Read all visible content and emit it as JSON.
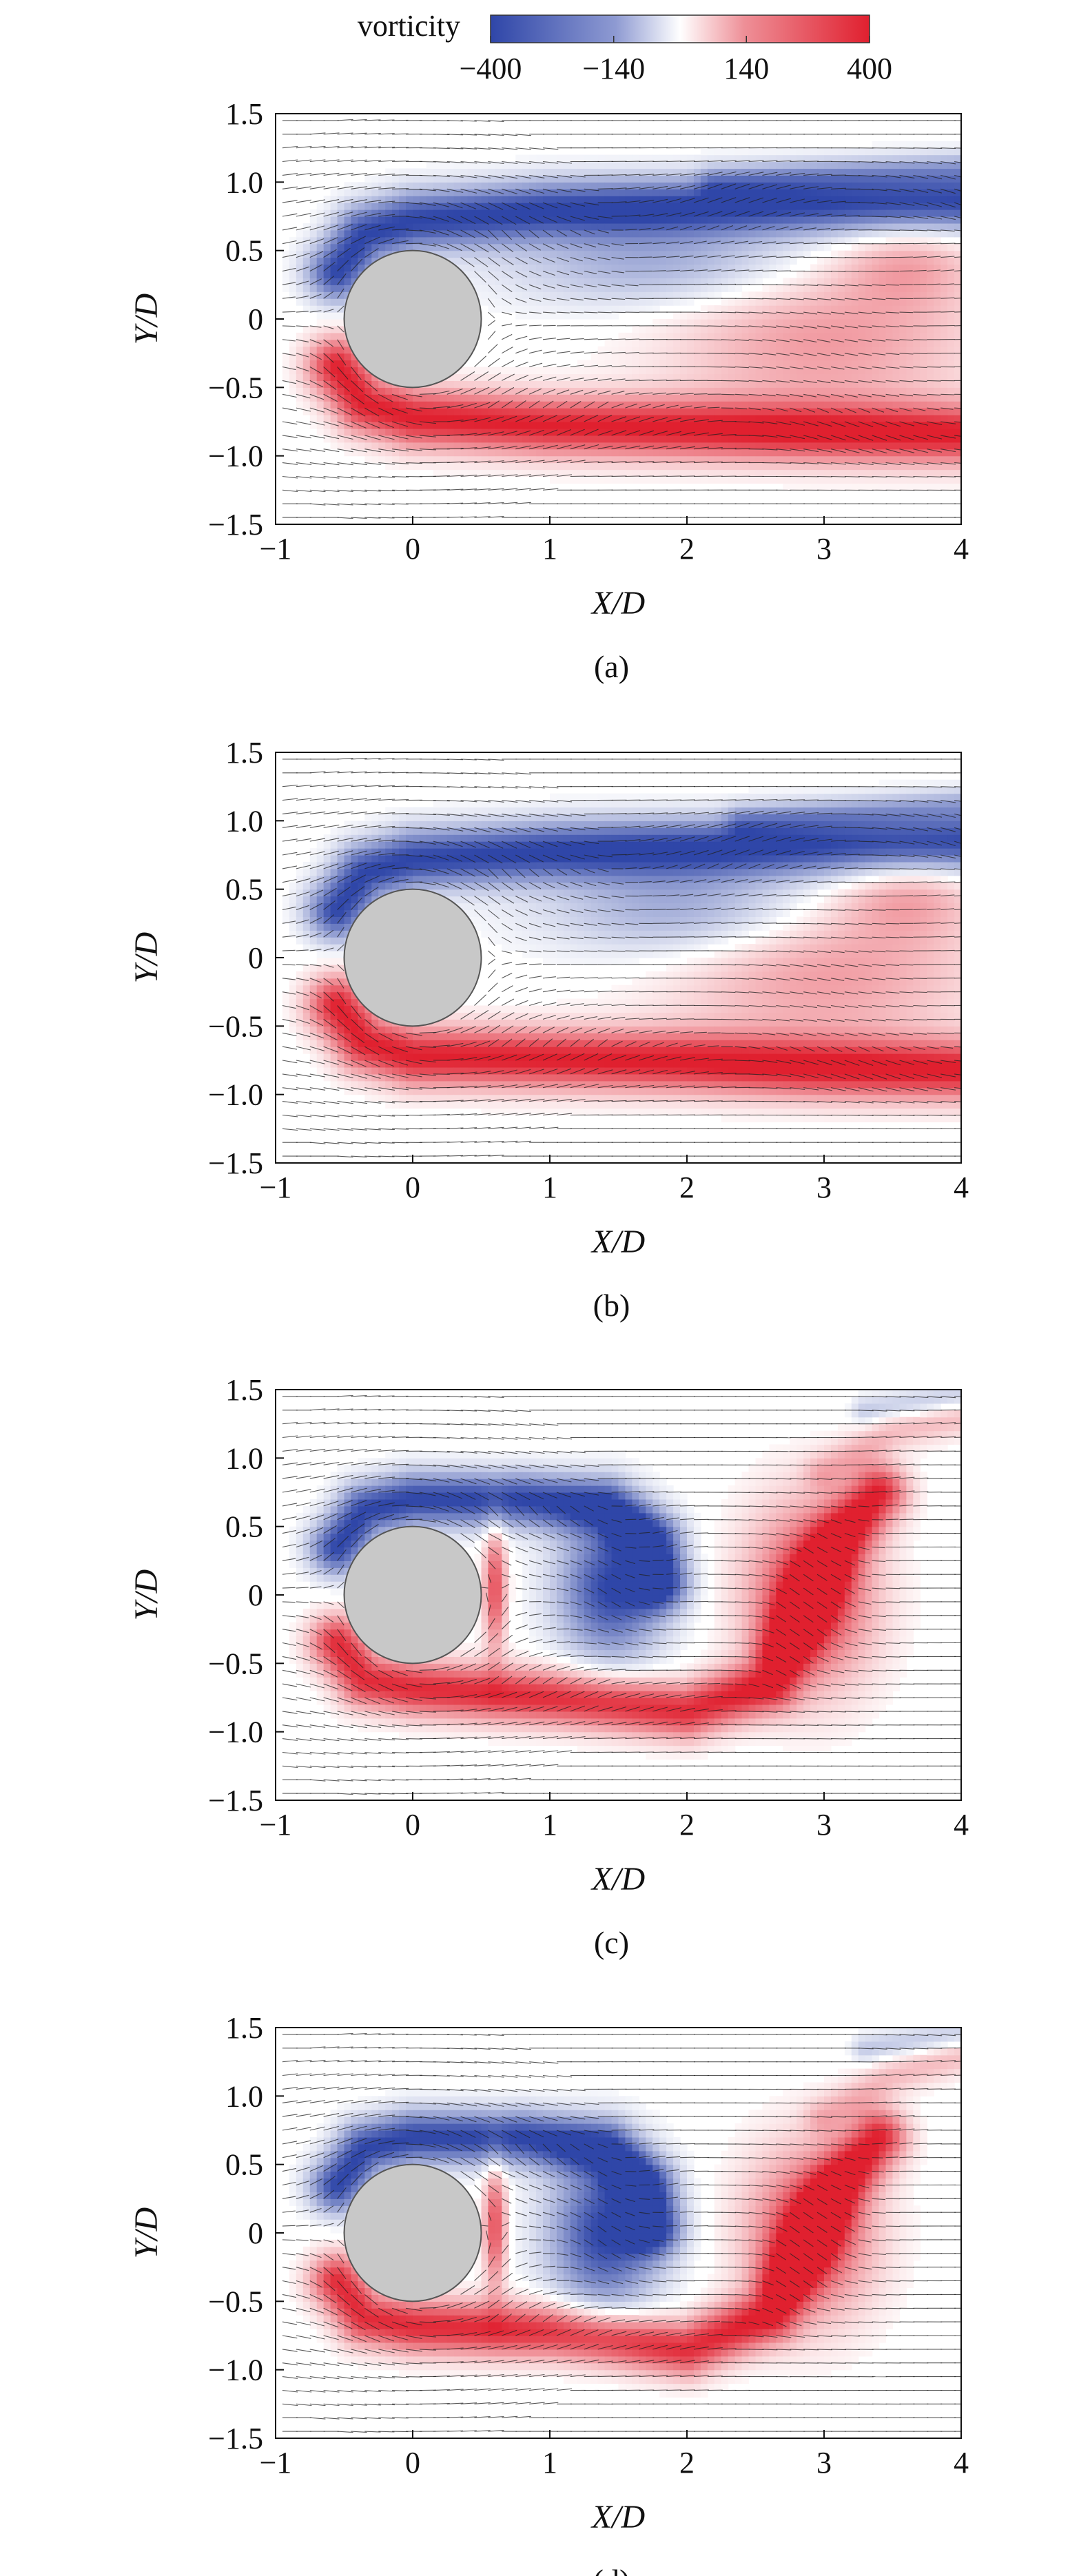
{
  "colorbar": {
    "label": "vorticity",
    "ticks": [
      -400,
      -140,
      140,
      400
    ],
    "tick_labels": [
      "−400",
      "−140",
      "140",
      "400"
    ],
    "range": [
      -400,
      400
    ],
    "colors": {
      "negative": "#2f46a8",
      "zero": "#ffffff",
      "positive": "#e0202f"
    }
  },
  "chart_data": [
    {
      "type": "heatmap",
      "panel_label": "(a)",
      "xlabel": "X/D",
      "ylabel": "Y/D",
      "xlim": [
        -1,
        4
      ],
      "ylim": [
        -1.5,
        1.5
      ],
      "xticks": [
        -1,
        0,
        1,
        2,
        3,
        4
      ],
      "xtick_labels": [
        "−1",
        "0",
        "1",
        "2",
        "3",
        "4"
      ],
      "yticks": [
        -1.5,
        -1.0,
        -0.5,
        0,
        0.5,
        1.0,
        1.5
      ],
      "ytick_labels": [
        "−1.5",
        "−1.0",
        "−0.5",
        "0",
        "0.5",
        "1.0",
        "1.5"
      ],
      "cylinder": {
        "center": [
          0,
          0
        ],
        "radius": 0.5,
        "color": "#c8c8c8"
      },
      "vector_field": "velocity arrows",
      "vortex_structures": [
        {
          "sign": "negative",
          "kind": "shear layer",
          "path": [
            [
              -0.55,
              0.35
            ],
            [
              -0.35,
              0.62
            ],
            [
              0.0,
              0.72
            ],
            [
              1.0,
              0.8
            ],
            [
              2.0,
              0.82
            ],
            [
              3.0,
              0.84
            ],
            [
              4.0,
              0.86
            ]
          ],
          "width": 0.22,
          "strength": 1.0
        },
        {
          "sign": "negative",
          "kind": "shear layer",
          "path": [
            [
              2.2,
              1.0
            ],
            [
              3.0,
              1.05
            ],
            [
              4.0,
              1.1
            ]
          ],
          "width": 0.12,
          "strength": 0.35
        },
        {
          "sign": "negative",
          "kind": "region",
          "center": [
            1.8,
            0.4
          ],
          "radius": [
            1.1,
            0.32
          ],
          "strength": 0.45
        },
        {
          "sign": "positive",
          "kind": "shear layer",
          "path": [
            [
              -0.55,
              -0.35
            ],
            [
              -0.35,
              -0.62
            ],
            [
              0.0,
              -0.72
            ],
            [
              1.0,
              -0.78
            ],
            [
              2.0,
              -0.8
            ],
            [
              3.0,
              -0.82
            ],
            [
              4.0,
              -0.84
            ]
          ],
          "width": 0.22,
          "strength": 1.0
        },
        {
          "sign": "positive",
          "kind": "region",
          "center": [
            3.0,
            -0.15
          ],
          "radius": [
            1.1,
            0.55
          ],
          "strength": 0.45
        },
        {
          "sign": "positive",
          "kind": "region",
          "center": [
            3.6,
            0.4
          ],
          "radius": [
            0.5,
            0.3
          ],
          "strength": 0.35
        }
      ]
    },
    {
      "type": "heatmap",
      "panel_label": "(b)",
      "xlabel": "X/D",
      "ylabel": "Y/D",
      "xlim": [
        -1,
        4
      ],
      "ylim": [
        -1.5,
        1.5
      ],
      "xticks": [
        -1,
        0,
        1,
        2,
        3,
        4
      ],
      "xtick_labels": [
        "−1",
        "0",
        "1",
        "2",
        "3",
        "4"
      ],
      "yticks": [
        -1.5,
        -1.0,
        -0.5,
        0,
        0.5,
        1.0,
        1.5
      ],
      "ytick_labels": [
        "−1.5",
        "−1.0",
        "−0.5",
        "0",
        "0.5",
        "1.0",
        "1.5"
      ],
      "cylinder": {
        "center": [
          0,
          0
        ],
        "radius": 0.5,
        "color": "#c8c8c8"
      },
      "vector_field": "velocity arrows",
      "vortex_structures": [
        {
          "sign": "negative",
          "kind": "shear layer",
          "path": [
            [
              -0.55,
              0.35
            ],
            [
              -0.35,
              0.62
            ],
            [
              0.0,
              0.72
            ],
            [
              1.0,
              0.78
            ],
            [
              2.0,
              0.8
            ],
            [
              3.0,
              0.82
            ],
            [
              4.0,
              0.85
            ]
          ],
          "width": 0.22,
          "strength": 1.0
        },
        {
          "sign": "negative",
          "kind": "shear layer",
          "path": [
            [
              2.4,
              1.0
            ],
            [
              3.2,
              1.06
            ],
            [
              4.0,
              1.12
            ]
          ],
          "width": 0.12,
          "strength": 0.35
        },
        {
          "sign": "negative",
          "kind": "region",
          "center": [
            2.0,
            0.35
          ],
          "radius": [
            1.0,
            0.35
          ],
          "strength": 0.5
        },
        {
          "sign": "positive",
          "kind": "shear layer",
          "path": [
            [
              -0.55,
              -0.35
            ],
            [
              -0.35,
              -0.62
            ],
            [
              0.0,
              -0.72
            ],
            [
              1.0,
              -0.74
            ],
            [
              2.0,
              -0.76
            ],
            [
              3.0,
              -0.8
            ],
            [
              4.0,
              -0.82
            ]
          ],
          "width": 0.22,
          "strength": 1.0
        },
        {
          "sign": "positive",
          "kind": "region",
          "center": [
            3.0,
            -0.1
          ],
          "radius": [
            1.1,
            0.55
          ],
          "strength": 0.45
        },
        {
          "sign": "positive",
          "kind": "region",
          "center": [
            3.6,
            0.45
          ],
          "radius": [
            0.5,
            0.3
          ],
          "strength": 0.35
        }
      ]
    },
    {
      "type": "heatmap",
      "panel_label": "(c)",
      "xlabel": "X/D",
      "ylabel": "Y/D",
      "xlim": [
        -1,
        4
      ],
      "ylim": [
        -1.5,
        1.5
      ],
      "xticks": [
        -1,
        0,
        1,
        2,
        3,
        4
      ],
      "xtick_labels": [
        "−1",
        "0",
        "1",
        "2",
        "3",
        "4"
      ],
      "yticks": [
        -1.5,
        -1.0,
        -0.5,
        0,
        0.5,
        1.0,
        1.5
      ],
      "ytick_labels": [
        "−1.5",
        "−1.0",
        "−0.5",
        "0",
        "0.5",
        "1.0",
        "1.5"
      ],
      "cylinder": {
        "center": [
          0,
          0
        ],
        "radius": 0.5,
        "color": "#c8c8c8"
      },
      "vector_field": "velocity arrows",
      "vortex_structures": [
        {
          "sign": "negative",
          "kind": "shear layer",
          "path": [
            [
              -0.55,
              0.35
            ],
            [
              -0.35,
              0.62
            ],
            [
              0.0,
              0.7
            ],
            [
              0.8,
              0.7
            ],
            [
              1.4,
              0.65
            ],
            [
              1.75,
              0.4
            ],
            [
              1.8,
              0.1
            ]
          ],
          "width": 0.2,
          "strength": 1.0
        },
        {
          "sign": "negative",
          "kind": "region",
          "center": [
            1.45,
            0.05
          ],
          "radius": [
            0.38,
            0.5
          ],
          "strength": 1.0
        },
        {
          "sign": "negative",
          "kind": "shear layer",
          "path": [
            [
              3.3,
              1.35
            ],
            [
              4.0,
              1.45
            ]
          ],
          "width": 0.1,
          "strength": 0.3
        },
        {
          "sign": "positive",
          "kind": "shear layer",
          "path": [
            [
              -0.55,
              -0.35
            ],
            [
              -0.35,
              -0.62
            ],
            [
              0.0,
              -0.68
            ],
            [
              1.0,
              -0.75
            ],
            [
              2.0,
              -0.85
            ],
            [
              2.6,
              -0.65
            ],
            [
              2.8,
              -0.2
            ],
            [
              3.1,
              0.4
            ],
            [
              3.4,
              0.75
            ]
          ],
          "width": 0.2,
          "strength": 0.95
        },
        {
          "sign": "positive",
          "kind": "region",
          "center": [
            2.9,
            0.0
          ],
          "radius": [
            0.45,
            0.65
          ],
          "strength": 0.9
        },
        {
          "sign": "positive",
          "kind": "region",
          "center": [
            0.6,
            0.05
          ],
          "radius": [
            0.08,
            0.45
          ],
          "strength": 0.8
        },
        {
          "sign": "positive",
          "kind": "shear layer",
          "path": [
            [
              3.0,
              0.9
            ],
            [
              3.5,
              1.2
            ],
            [
              4.0,
              1.3
            ]
          ],
          "width": 0.14,
          "strength": 0.3
        }
      ]
    },
    {
      "type": "heatmap",
      "panel_label": "(d)",
      "xlabel": "X/D",
      "ylabel": "Y/D",
      "xlim": [
        -1,
        4
      ],
      "ylim": [
        -1.5,
        1.5
      ],
      "xticks": [
        -1,
        0,
        1,
        2,
        3,
        4
      ],
      "xtick_labels": [
        "−1",
        "0",
        "1",
        "2",
        "3",
        "4"
      ],
      "yticks": [
        -1.5,
        -1.0,
        -0.5,
        0,
        0.5,
        1.0,
        1.5
      ],
      "ytick_labels": [
        "−1.5",
        "−1.0",
        "−0.5",
        "0",
        "0.5",
        "1.0",
        "1.5"
      ],
      "cylinder": {
        "center": [
          0,
          0
        ],
        "radius": 0.5,
        "color": "#c8c8c8"
      },
      "vector_field": "velocity arrows",
      "vortex_structures": [
        {
          "sign": "negative",
          "kind": "shear layer",
          "path": [
            [
              -0.55,
              0.35
            ],
            [
              -0.35,
              0.62
            ],
            [
              0.0,
              0.7
            ],
            [
              0.8,
              0.7
            ],
            [
              1.4,
              0.62
            ],
            [
              1.7,
              0.35
            ],
            [
              1.75,
              0.05
            ]
          ],
          "width": 0.2,
          "strength": 1.0
        },
        {
          "sign": "negative",
          "kind": "region",
          "center": [
            1.4,
            0.0
          ],
          "radius": [
            0.4,
            0.55
          ],
          "strength": 1.0
        },
        {
          "sign": "negative",
          "kind": "shear layer",
          "path": [
            [
              3.3,
              1.35
            ],
            [
              4.0,
              1.45
            ]
          ],
          "width": 0.1,
          "strength": 0.3
        },
        {
          "sign": "positive",
          "kind": "shear layer",
          "path": [
            [
              -0.55,
              -0.35
            ],
            [
              -0.35,
              -0.62
            ],
            [
              0.0,
              -0.68
            ],
            [
              1.0,
              -0.72
            ],
            [
              2.0,
              -0.85
            ],
            [
              2.6,
              -0.6
            ],
            [
              2.8,
              -0.2
            ],
            [
              3.1,
              0.35
            ],
            [
              3.4,
              0.7
            ]
          ],
          "width": 0.2,
          "strength": 0.95
        },
        {
          "sign": "positive",
          "kind": "region",
          "center": [
            2.9,
            0.0
          ],
          "radius": [
            0.45,
            0.6
          ],
          "strength": 0.85
        },
        {
          "sign": "positive",
          "kind": "region",
          "center": [
            0.6,
            0.05
          ],
          "radius": [
            0.08,
            0.45
          ],
          "strength": 0.8
        },
        {
          "sign": "positive",
          "kind": "shear layer",
          "path": [
            [
              3.0,
              0.85
            ],
            [
              3.5,
              1.15
            ],
            [
              4.0,
              1.3
            ]
          ],
          "width": 0.14,
          "strength": 0.3
        }
      ]
    }
  ]
}
